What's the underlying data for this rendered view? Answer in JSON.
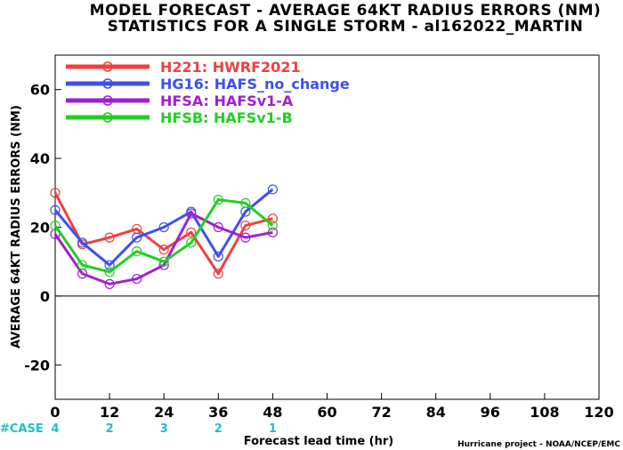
{
  "chart_data": {
    "type": "line",
    "title": "MODEL FORECAST - AVERAGE 64KT RADIUS ERRORS (NM)",
    "subtitle": "STATISTICS FOR A SINGLE STORM - al162022_MARTIN",
    "xlabel": "Forecast lead time (hr)",
    "ylabel": "AVERAGE 64KT RADIUS ERRORS (NM)",
    "xlim": [
      0,
      120
    ],
    "ylim": [
      -30,
      70
    ],
    "x_ticks": [
      "0",
      "12",
      "24",
      "36",
      "48",
      "60",
      "72",
      "84",
      "96",
      "108",
      "120"
    ],
    "x_tick_values": [
      0,
      12,
      24,
      36,
      48,
      60,
      72,
      84,
      96,
      108,
      120
    ],
    "y_ticks": [
      "-20",
      "0",
      "20",
      "40",
      "60"
    ],
    "y_tick_values": [
      -20,
      0,
      20,
      40,
      60
    ],
    "grid": false,
    "zero_line": true,
    "legend_position": "top-left",
    "x": [
      0,
      6,
      12,
      18,
      24,
      30,
      36,
      42,
      48
    ],
    "series": [
      {
        "name": "H221: HWRF2021",
        "color": "#f04040",
        "values": [
          30,
          15,
          17,
          19.5,
          13.5,
          18.5,
          6.5,
          20.5,
          22.5
        ]
      },
      {
        "name": "HG16: HAFS_no_change",
        "color": "#3c50f0",
        "values": [
          25,
          15.5,
          9,
          17,
          20,
          24.5,
          11.5,
          24.5,
          31
        ]
      },
      {
        "name": "HFSA: HAFSv1-A",
        "color": "#a020d0",
        "values": [
          18,
          6.5,
          3.5,
          5,
          9,
          24,
          20,
          17,
          18.5
        ]
      },
      {
        "name": "HFSB: HAFSv1-B",
        "color": "#20d020",
        "values": [
          20.5,
          9,
          7,
          13,
          10,
          15.5,
          28,
          27,
          20.5
        ]
      }
    ],
    "case_label": "#CASE",
    "cases": [
      {
        "x": 0,
        "count": "4"
      },
      {
        "x": 12,
        "count": "2"
      },
      {
        "x": 24,
        "count": "3"
      },
      {
        "x": 36,
        "count": "2"
      },
      {
        "x": 48,
        "count": "1"
      }
    ],
    "credit": "Hurricane project - NOAA/NCEP/EMC"
  },
  "colors": {
    "case_text": "#1fc0c8",
    "axis": "#000000"
  }
}
